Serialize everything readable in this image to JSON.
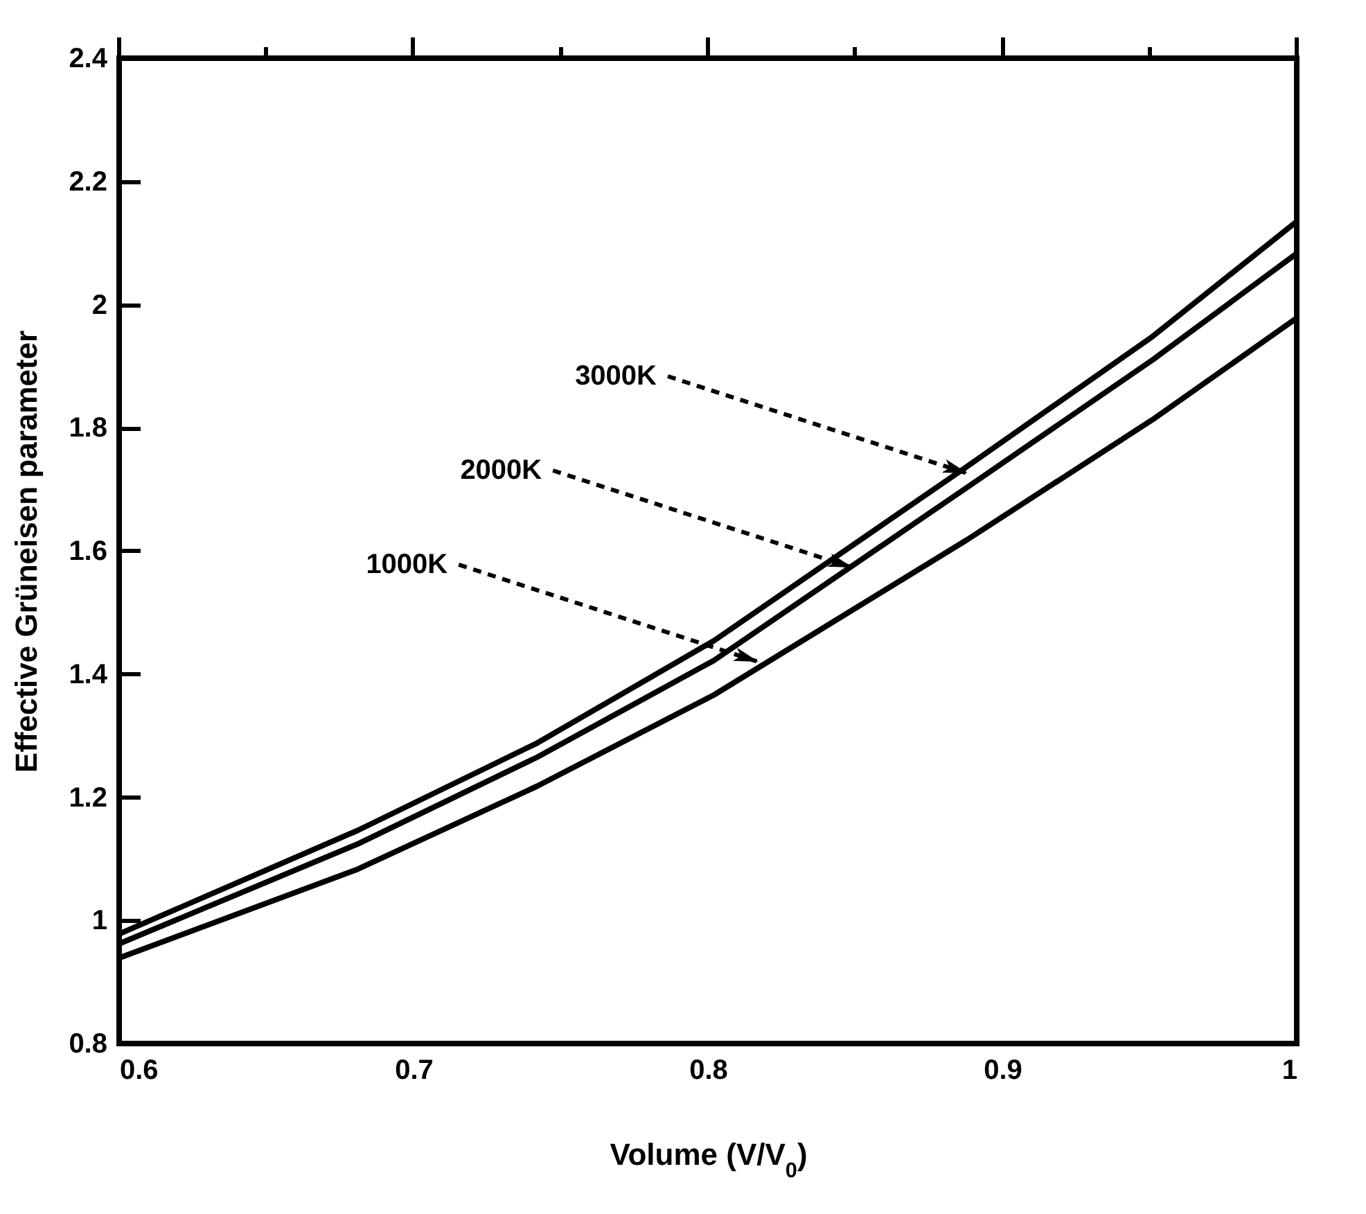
{
  "chart_data": {
    "type": "line",
    "xlabel": "Volume (V/V$_{0}$)",
    "ylabel": "Effective Grüneisen parameter",
    "x": [
      0.6,
      0.681,
      0.742,
      0.802,
      0.888,
      0.951,
      1.0
    ],
    "series": [
      {
        "color": "#000000",
        "values": [
          0.978,
          1.146,
          1.288,
          1.454,
          1.737,
          1.948,
          2.135
        ]
      },
      {
        "color": "#000000",
        "values": [
          0.962,
          1.124,
          1.265,
          1.422,
          1.703,
          1.91,
          2.083
        ]
      },
      {
        "color": "#000000",
        "values": [
          0.939,
          1.083,
          1.218,
          1.366,
          1.618,
          1.813,
          1.978
        ]
      }
    ],
    "annotations": [
      {
        "text": "3000K",
        "x": 0.888,
        "y": 1.726
      },
      {
        "text": "2000K",
        "x": 0.849,
        "y": 1.573
      },
      {
        "text": "1000K",
        "x": 0.817,
        "y": 1.42
      }
    ],
    "xlim": [
      0.6,
      1.0
    ],
    "xticks": [
      0.6,
      {
        "value": 0.65,
        "label": null
      },
      0.7,
      {
        "value": 0.75,
        "label": null
      },
      0.8,
      {
        "value": 0.85,
        "label": null
      },
      0.9,
      {
        "value": 0.95,
        "label": null
      },
      1
    ],
    "ylim": [
      0.8,
      2.4
    ],
    "yticks": [
      0.8,
      1,
      1.2,
      1.4,
      1.6,
      1.8,
      2,
      2.2,
      2.4
    ],
    "grid": false,
    "marker": "none",
    "line_style": "solid",
    "legend": false
  }
}
